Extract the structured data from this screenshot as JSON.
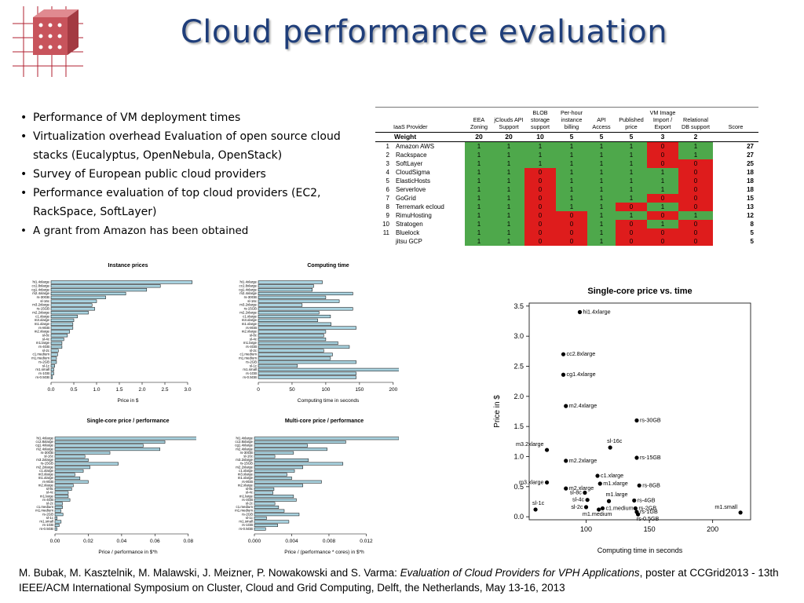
{
  "slide": {
    "title": "Cloud performance evaluation",
    "logo_icon": "grid-cube-logo-icon",
    "bullets": [
      "Performance of VM deployment times",
      "Virtualization overhead Evaluation of open source cloud stacks (Eucalyptus, OpenNebula, OpenStack)",
      "Survey of European public cloud providers",
      "Performance evaluation of top cloud providers (EC2, RackSpace, SoftLayer)",
      "A grant from Amazon has been obtained"
    ],
    "footer": {
      "authors": "M. Bubak, M. Kasztelnik, M. Malawski, J. Meizner, P. Nowakowski and S. Varma: ",
      "paper_title": "Evaluation of Cloud Providers for VPH Applications",
      "venue": ", poster at CCGrid2013 - 13th IEEE/ACM  International Symposium on Cluster, Cloud and Grid Computing, Delft, the Netherlands, May 13-16, 2013"
    }
  },
  "colors": {
    "title": "#1f3e7a",
    "pass": "#4ea84b",
    "fail": "#de1c1c",
    "bar": "#a9d3e0"
  },
  "provider_table": {
    "headers": [
      "IaaS Provider",
      "EEA Zoning",
      "jClouds API Support",
      "BLOB storage support",
      "Per-hour instance billing",
      "API Access",
      "Published price",
      "VM Image Import / Export",
      "Relational DB support",
      "Score"
    ],
    "weight_label": "Weight",
    "weights": [
      "20",
      "20",
      "10",
      "5",
      "5",
      "5",
      "3",
      "2"
    ],
    "rows": [
      {
        "idx": "1",
        "name": "Amazon AWS",
        "vals": [
          "1",
          "1",
          "1",
          "1",
          "1",
          "1",
          "0",
          "1"
        ],
        "score": "27"
      },
      {
        "idx": "2",
        "name": "Rackspace",
        "vals": [
          "1",
          "1",
          "1",
          "1",
          "1",
          "1",
          "0",
          "1"
        ],
        "score": "27"
      },
      {
        "idx": "3",
        "name": "SoftLayer",
        "vals": [
          "1",
          "1",
          "1",
          "1",
          "1",
          "1",
          "0",
          "0"
        ],
        "score": "25"
      },
      {
        "idx": "4",
        "name": "CloudSigma",
        "vals": [
          "1",
          "1",
          "0",
          "1",
          "1",
          "1",
          "1",
          "0"
        ],
        "score": "18"
      },
      {
        "idx": "5",
        "name": "ElasticHosts",
        "vals": [
          "1",
          "1",
          "0",
          "1",
          "1",
          "1",
          "1",
          "0"
        ],
        "score": "18"
      },
      {
        "idx": "6",
        "name": "Serverlove",
        "vals": [
          "1",
          "1",
          "0",
          "1",
          "1",
          "1",
          "1",
          "0"
        ],
        "score": "18"
      },
      {
        "idx": "7",
        "name": "GoGrid",
        "vals": [
          "1",
          "1",
          "0",
          "1",
          "1",
          "1",
          "0",
          "0"
        ],
        "score": "15"
      },
      {
        "idx": "8",
        "name": "Terremark ecloud",
        "vals": [
          "1",
          "1",
          "0",
          "1",
          "1",
          "0",
          "1",
          "0"
        ],
        "score": "13"
      },
      {
        "idx": "9",
        "name": "RimuHosting",
        "vals": [
          "1",
          "1",
          "0",
          "0",
          "1",
          "1",
          "0",
          "1"
        ],
        "score": "12"
      },
      {
        "idx": "10",
        "name": "Stratogen",
        "vals": [
          "1",
          "1",
          "0",
          "0",
          "1",
          "0",
          "1",
          "0"
        ],
        "score": "8"
      },
      {
        "idx": "11",
        "name": "Bluelock",
        "vals": [
          "1",
          "1",
          "0",
          "0",
          "1",
          "0",
          "0",
          "0"
        ],
        "score": "5"
      },
      {
        "idx": "",
        "name": "jitsu GCP",
        "vals": [
          "1",
          "1",
          "0",
          "0",
          "1",
          "0",
          "0",
          "0"
        ],
        "score": "5"
      }
    ]
  },
  "chart_data": [
    {
      "type": "bar",
      "title": "Instance prices",
      "xlabel": "Price in $",
      "orientation": "horizontal",
      "xlim": [
        0,
        3.0
      ],
      "xticks": [
        "0.0",
        "0.5",
        "1.0",
        "1.5",
        "2.0",
        "2.5",
        "3.0"
      ],
      "categories": [
        "hi1.4xlarge",
        "cc2.8xlarge",
        "cg1.4xlarge",
        "m2.4xlarge",
        "rs-30GB",
        "sl-16c",
        "m3.2xlarge",
        "rs-15GB",
        "m2.2xlarge",
        "c1.xlarge",
        "m3.xlarge",
        "m1.xlarge",
        "rs-8GB",
        "m2.xlarge",
        "sl-8c",
        "sl-4c",
        "m1.large",
        "rs-4GB",
        "sl-2c",
        "c1.medium",
        "m1.medium",
        "rs-2GB",
        "sl-1c",
        "m1.small",
        "rs-1GB",
        "rs-0.5GB"
      ],
      "values": [
        3.1,
        2.4,
        2.1,
        1.64,
        1.2,
        1.0,
        0.9,
        0.96,
        0.82,
        0.58,
        0.5,
        0.48,
        0.48,
        0.41,
        0.36,
        0.28,
        0.24,
        0.24,
        0.16,
        0.145,
        0.12,
        0.12,
        0.08,
        0.06,
        0.06,
        0.03
      ]
    },
    {
      "type": "bar",
      "title": "Computing time",
      "xlabel": "Computing time in seconds",
      "orientation": "horizontal",
      "xlim": [
        0,
        220
      ],
      "xticks": [
        "0",
        "50",
        "100",
        "150",
        "200"
      ],
      "categories": [
        "hi1.4xlarge",
        "cc2.8xlarge",
        "cg1.4xlarge",
        "m2.4xlarge",
        "rs-30GB",
        "sl-16c",
        "m3.2xlarge",
        "rs-15GB",
        "m2.2xlarge",
        "c1.xlarge",
        "m3.xlarge",
        "m1.xlarge",
        "rs-8GB",
        "m2.xlarge",
        "sl-8c",
        "sl-4c",
        "m1.large",
        "rs-4GB",
        "sl-2c",
        "c1.medium",
        "m1.medium",
        "rs-2GB",
        "sl-1c",
        "m1.small",
        "rs-1GB",
        "rs-0.5GB"
      ],
      "values": [
        95,
        82,
        80,
        140,
        100,
        120,
        65,
        140,
        90,
        107,
        88,
        108,
        145,
        100,
        97,
        100,
        118,
        135,
        97,
        110,
        107,
        145,
        58,
        222,
        145,
        145
      ]
    },
    {
      "type": "bar",
      "title": "Single-core price / performance",
      "xlabel": "Price / performance in $*h",
      "orientation": "horizontal",
      "xlim": [
        0,
        0.09
      ],
      "xticks": [
        "0.00",
        "0.02",
        "0.04",
        "0.06",
        "0.08"
      ],
      "categories": [
        "hi1.4xlarge",
        "cc2.8xlarge",
        "cg1.4xlarge",
        "m2.4xlarge",
        "rs-30GB",
        "sl-16c",
        "m3.2xlarge",
        "rs-15GB",
        "m2.2xlarge",
        "c1.xlarge",
        "m3.xlarge",
        "m1.xlarge",
        "rs-8GB",
        "m2.xlarge",
        "sl-8c",
        "sl-4c",
        "m1.large",
        "rs-4GB",
        "sl-2c",
        "c1.medium",
        "m1.medium",
        "rs-2GB",
        "sl-1c",
        "m1.small",
        "rs-1GB",
        "rs-0.5GB"
      ],
      "values": [
        0.091,
        0.066,
        0.053,
        0.063,
        0.033,
        0.018,
        0.02,
        0.038,
        0.021,
        0.017,
        0.012,
        0.015,
        0.02,
        0.011,
        0.01,
        0.008,
        0.008,
        0.009,
        0.0045,
        0.0045,
        0.0036,
        0.0048,
        0.0013,
        0.0037,
        0.0025,
        0.0012
      ]
    },
    {
      "type": "bar",
      "title": "Multi-core price / performance",
      "xlabel": "Price / (performance * cores) in $*h",
      "orientation": "horizontal",
      "xlim": [
        0,
        0.0155
      ],
      "xticks": [
        "0.000",
        "0.004",
        "0.008",
        "0.012"
      ],
      "categories": [
        "hi1.4xlarge",
        "cc2.8xlarge",
        "cg1.4xlarge",
        "m2.4xlarge",
        "rs-30GB",
        "sl-16c",
        "m3.2xlarge",
        "rs-15GB",
        "m2.2xlarge",
        "c1.xlarge",
        "m3.xlarge",
        "m1.xlarge",
        "rs-8GB",
        "m2.xlarge",
        "sl-8c",
        "sl-4c",
        "m1.large",
        "rs-4GB",
        "sl-2c",
        "c1.medium",
        "m1.medium",
        "rs-2GB",
        "sl-1c",
        "m1.small",
        "rs-1GB",
        "rs-0.5GB"
      ],
      "values": [
        0.0155,
        0.0098,
        0.0057,
        0.0078,
        0.0042,
        0.0022,
        0.0058,
        0.0095,
        0.0052,
        0.0043,
        0.0035,
        0.004,
        0.0072,
        0.0052,
        0.0021,
        0.002,
        0.0042,
        0.0045,
        0.0022,
        0.0026,
        0.0032,
        0.0048,
        0.0013,
        0.0037,
        0.0025,
        0.0012
      ]
    },
    {
      "type": "scatter",
      "title": "Single-core price vs. time",
      "xlabel": "Computing time in seconds",
      "ylabel": "Price in $",
      "xlim": [
        55,
        230
      ],
      "ylim": [
        -0.05,
        3.55
      ],
      "xticks": [
        "100",
        "150",
        "200"
      ],
      "yticks": [
        "0.0",
        "0.5",
        "1.0",
        "1.5",
        "2.0",
        "2.5",
        "3.0",
        "3.5"
      ],
      "points": [
        {
          "label": "hi1.4xlarge",
          "x": 95,
          "y": 3.4
        },
        {
          "label": "cc2.8xlarge",
          "x": 82,
          "y": 2.7
        },
        {
          "label": "cg1.4xlarge",
          "x": 82,
          "y": 2.36
        },
        {
          "label": "m2.4xlarge",
          "x": 84,
          "y": 1.84
        },
        {
          "label": "rs-30GB",
          "x": 140,
          "y": 1.6
        },
        {
          "label": "sl-16c",
          "x": 119,
          "y": 1.15
        },
        {
          "label": "m3.2xlarge",
          "x": 69,
          "y": 1.11
        },
        {
          "label": "m2.2xlarge",
          "x": 84,
          "y": 0.93
        },
        {
          "label": "rs-15GB",
          "x": 140,
          "y": 0.98
        },
        {
          "label": "c1.xlarge",
          "x": 109,
          "y": 0.68
        },
        {
          "label": "m3.xlarge",
          "x": 69,
          "y": 0.57
        },
        {
          "label": "m1.xlarge",
          "x": 111,
          "y": 0.55
        },
        {
          "label": "rs-8GB",
          "x": 142,
          "y": 0.52
        },
        {
          "label": "m2.xlarge",
          "x": 84,
          "y": 0.47
        },
        {
          "label": "sl-8c",
          "x": 99,
          "y": 0.4
        },
        {
          "label": "m1.large",
          "x": 118,
          "y": 0.26
        },
        {
          "label": "rs-4GB",
          "x": 138,
          "y": 0.27
        },
        {
          "label": "sl-4c",
          "x": 101,
          "y": 0.28
        },
        {
          "label": "rs-2GB",
          "x": 139,
          "y": 0.14
        },
        {
          "label": "c1.medium",
          "x": 113,
          "y": 0.14
        },
        {
          "label": "sl-2c",
          "x": 100,
          "y": 0.16
        },
        {
          "label": "sl-1c",
          "x": 60,
          "y": 0.12
        },
        {
          "label": "m1.medium",
          "x": 110,
          "y": 0.12
        },
        {
          "label": "rs-1GB",
          "x": 140,
          "y": 0.08
        },
        {
          "label": "rs-0.5GB",
          "x": 141,
          "y": 0.04
        },
        {
          "label": "m1.small",
          "x": 222,
          "y": 0.07
        }
      ]
    }
  ]
}
